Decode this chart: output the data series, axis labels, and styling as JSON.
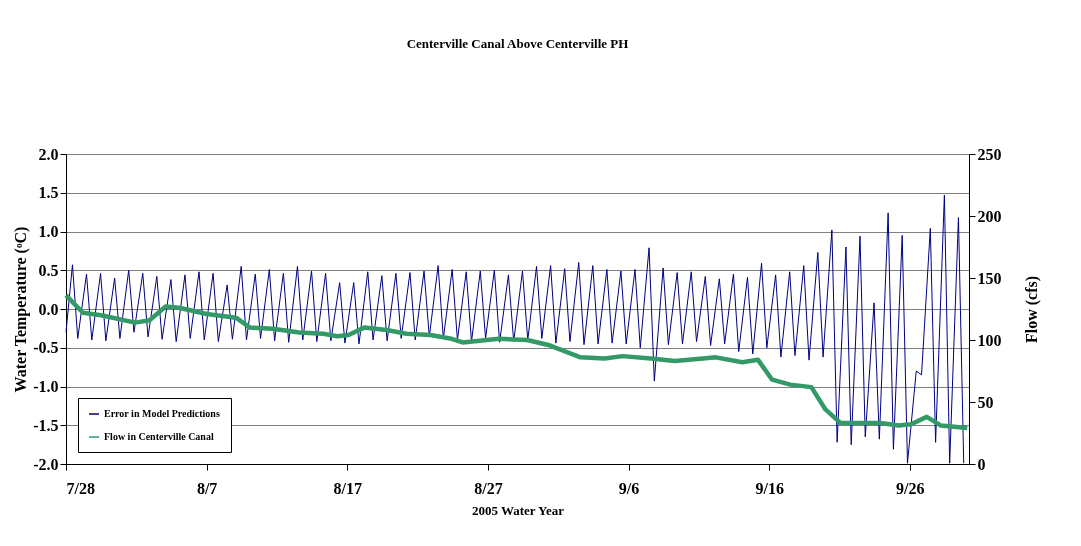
{
  "chart_data": {
    "type": "line",
    "title": "Centerville Canal Above Centerville PH",
    "xlabel": "2005 Water Year",
    "ylabel": "Water Temperature (ᵒC)",
    "y2label": "Flow (cfs)",
    "xlim": [
      "2005-07-28T00:00",
      "2005-09-30T05:00"
    ],
    "xticks": [
      {
        "value": "2005-07-28T00:00",
        "label": "7/28"
      },
      {
        "value": "2005-08-07T00:00",
        "label": "8/7"
      },
      {
        "value": "2005-08-17T00:00",
        "label": "8/17"
      },
      {
        "value": "2005-08-27T00:00",
        "label": "8/27"
      },
      {
        "value": "2005-09-06T00:00",
        "label": "9/6"
      },
      {
        "value": "2005-09-16T00:00",
        "label": "9/16"
      },
      {
        "value": "2005-09-26T00:00",
        "label": "9/26"
      }
    ],
    "ylim": [
      -2,
      2
    ],
    "yticks": [
      {
        "value": -2,
        "label": "-2.0"
      },
      {
        "value": -1.5,
        "label": "-1.5"
      },
      {
        "value": -1,
        "label": "-1.0"
      },
      {
        "value": -0.5,
        "label": "-0.5"
      },
      {
        "value": 0,
        "label": "0.0"
      },
      {
        "value": 0.5,
        "label": "0.5"
      },
      {
        "value": 1,
        "label": "1.0"
      },
      {
        "value": 1.5,
        "label": "1.5"
      },
      {
        "value": 2,
        "label": "2.0"
      }
    ],
    "y2lim": [
      0,
      250
    ],
    "y2ticks": [
      0,
      50,
      100,
      150,
      200,
      250
    ],
    "grid": "y",
    "legend": "bottom left",
    "series": [
      {
        "name": "Error in Model Predictions",
        "color": "#000080",
        "x": [
          "2005-07-28T00:00",
          "2005-07-28T11:00",
          "2005-07-28T20:00",
          "2005-07-29T11:00",
          "2005-07-29T20:00",
          "2005-07-30T11:00",
          "2005-07-30T20:00",
          "2005-07-31T11:00",
          "2005-07-31T20:00",
          "2005-08-01T11:00",
          "2005-08-01T20:00",
          "2005-08-02T11:00",
          "2005-08-02T20:00",
          "2005-08-03T11:00",
          "2005-08-03T20:00",
          "2005-08-04T11:00",
          "2005-08-04T20:00",
          "2005-08-05T11:00",
          "2005-08-05T20:00",
          "2005-08-06T11:00",
          "2005-08-06T20:00",
          "2005-08-07T11:00",
          "2005-08-07T20:00",
          "2005-08-08T11:00",
          "2005-08-08T20:00",
          "2005-08-09T11:00",
          "2005-08-09T20:00",
          "2005-08-10T11:00",
          "2005-08-10T20:00",
          "2005-08-11T11:00",
          "2005-08-11T20:00",
          "2005-08-12T11:00",
          "2005-08-12T20:00",
          "2005-08-13T11:00",
          "2005-08-13T20:00",
          "2005-08-14T11:00",
          "2005-08-14T20:00",
          "2005-08-15T11:00",
          "2005-08-15T20:00",
          "2005-08-16T11:00",
          "2005-08-16T20:00",
          "2005-08-17T11:00",
          "2005-08-17T20:00",
          "2005-08-18T11:00",
          "2005-08-18T20:00",
          "2005-08-19T11:00",
          "2005-08-19T20:00",
          "2005-08-20T11:00",
          "2005-08-20T20:00",
          "2005-08-21T11:00",
          "2005-08-21T20:00",
          "2005-08-22T11:00",
          "2005-08-22T20:00",
          "2005-08-23T11:00",
          "2005-08-23T20:00",
          "2005-08-24T11:00",
          "2005-08-24T20:00",
          "2005-08-25T11:00",
          "2005-08-25T20:00",
          "2005-08-26T11:00",
          "2005-08-26T20:00",
          "2005-08-27T11:00",
          "2005-08-27T20:00",
          "2005-08-28T11:00",
          "2005-08-28T20:00",
          "2005-08-29T11:00",
          "2005-08-29T20:00",
          "2005-08-30T11:00",
          "2005-08-30T20:00",
          "2005-08-31T11:00",
          "2005-08-31T20:00",
          "2005-09-01T11:00",
          "2005-09-01T20:00",
          "2005-09-02T11:00",
          "2005-09-02T20:00",
          "2005-09-03T11:00",
          "2005-09-03T20:00",
          "2005-09-04T11:00",
          "2005-09-04T20:00",
          "2005-09-05T11:00",
          "2005-09-05T20:00",
          "2005-09-06T11:00",
          "2005-09-06T20:00",
          "2005-09-07T11:00",
          "2005-09-07T20:00",
          "2005-09-08T11:00",
          "2005-09-08T20:00",
          "2005-09-09T11:00",
          "2005-09-09T20:00",
          "2005-09-10T11:00",
          "2005-09-10T20:00",
          "2005-09-11T11:00",
          "2005-09-11T20:00",
          "2005-09-12T11:00",
          "2005-09-12T20:00",
          "2005-09-13T11:00",
          "2005-09-13T20:00",
          "2005-09-14T11:00",
          "2005-09-14T20:00",
          "2005-09-15T11:00",
          "2005-09-15T20:00",
          "2005-09-16T11:00",
          "2005-09-16T20:00",
          "2005-09-17T11:00",
          "2005-09-17T20:00",
          "2005-09-18T11:00",
          "2005-09-18T20:00",
          "2005-09-19T11:00",
          "2005-09-19T20:00",
          "2005-09-20T11:00",
          "2005-09-20T20:00",
          "2005-09-21T11:00",
          "2005-09-21T20:00",
          "2005-09-22T11:00",
          "2005-09-22T20:00",
          "2005-09-23T11:00",
          "2005-09-23T20:00",
          "2005-09-24T11:00",
          "2005-09-24T20:00",
          "2005-09-25T11:00",
          "2005-09-25T20:00",
          "2005-09-26T11:00",
          "2005-09-26T20:00",
          "2005-09-27T11:00",
          "2005-09-27T20:00",
          "2005-09-28T11:00",
          "2005-09-28T20:00",
          "2005-09-29T11:00",
          "2005-09-29T20:00"
        ],
        "values": [
          -0.3,
          0.57,
          -0.38,
          0.45,
          -0.4,
          0.46,
          -0.41,
          0.4,
          -0.38,
          0.5,
          -0.3,
          0.46,
          -0.36,
          0.42,
          -0.39,
          0.38,
          -0.42,
          0.44,
          -0.38,
          0.48,
          -0.4,
          0.46,
          -0.42,
          0.31,
          -0.39,
          0.55,
          -0.4,
          0.45,
          -0.38,
          0.51,
          -0.41,
          0.46,
          -0.43,
          0.55,
          -0.4,
          0.49,
          -0.42,
          0.46,
          -0.41,
          0.34,
          -0.44,
          0.34,
          -0.45,
          0.48,
          -0.4,
          0.43,
          -0.41,
          0.46,
          -0.38,
          0.47,
          -0.4,
          0.49,
          -0.36,
          0.56,
          -0.38,
          0.51,
          -0.4,
          0.48,
          -0.42,
          0.49,
          -0.38,
          0.5,
          -0.43,
          0.44,
          -0.42,
          0.49,
          -0.4,
          0.55,
          -0.38,
          0.56,
          -0.44,
          0.52,
          -0.42,
          0.6,
          -0.46,
          0.56,
          -0.45,
          0.51,
          -0.44,
          0.49,
          -0.45,
          0.51,
          -0.5,
          0.79,
          -0.93,
          0.53,
          -0.46,
          0.47,
          -0.45,
          0.48,
          -0.42,
          0.42,
          -0.47,
          0.39,
          -0.45,
          0.45,
          -0.55,
          0.41,
          -0.58,
          0.59,
          -0.5,
          0.44,
          -0.62,
          0.48,
          -0.6,
          0.56,
          -0.66,
          0.73,
          -0.62,
          1.02,
          -1.72,
          0.8,
          -1.75,
          0.94,
          -1.65,
          0.08,
          -1.68,
          1.24,
          -1.81,
          0.95,
          -1.99,
          -0.8,
          -0.85,
          1.04,
          -1.72,
          1.47,
          -1.99,
          1.18,
          -1.99
        ]
      },
      {
        "name": "Flow in Centerville Canal",
        "color": "#339966",
        "axis": "y2",
        "x": [
          "2005-07-28T00:00",
          "2005-07-29T05:00",
          "2005-07-30T12:00",
          "2005-08-01T22:00",
          "2005-08-02T23:00",
          "2005-08-04T02:00",
          "2005-08-05T01:00",
          "2005-08-07T00:00",
          "2005-08-09T02:00",
          "2005-08-10T02:00",
          "2005-08-11T17:00",
          "2005-08-13T14:00",
          "2005-08-15T07:00",
          "2005-08-16T07:00",
          "2005-08-17T02:00",
          "2005-08-18T05:00",
          "2005-08-19T19:00",
          "2005-08-21T05:00",
          "2005-08-22T22:00",
          "2005-08-24T10:00",
          "2005-08-25T05:00",
          "2005-08-26T22:00",
          "2005-08-27T19:00",
          "2005-08-29T19:00",
          "2005-08-31T07:00",
          "2005-09-02T14:00",
          "2005-09-04T07:00",
          "2005-09-05T14:00",
          "2005-09-07T14:00",
          "2005-09-09T07:00",
          "2005-09-11T07:00",
          "2005-09-12T05:00",
          "2005-09-14T02:00",
          "2005-09-15T05:00",
          "2005-09-16T05:00",
          "2005-09-17T12:00",
          "2005-09-19T00:00",
          "2005-09-20T00:00",
          "2005-09-21T02:00",
          "2005-09-23T22:00",
          "2005-09-25T05:00",
          "2005-09-26T02:00",
          "2005-09-27T05:00",
          "2005-09-28T05:00",
          "2005-09-30T02:00"
        ],
        "values": [
          136,
          122,
          120,
          114,
          116,
          127,
          126,
          121,
          118,
          110,
          109,
          106,
          105,
          103,
          104,
          110,
          108,
          105,
          104,
          101,
          98,
          100,
          101,
          100,
          96,
          86,
          85,
          87,
          85,
          83,
          85,
          86,
          82,
          84,
          68,
          64,
          62,
          44,
          33,
          33,
          31,
          32,
          38,
          31,
          29
        ]
      }
    ]
  }
}
